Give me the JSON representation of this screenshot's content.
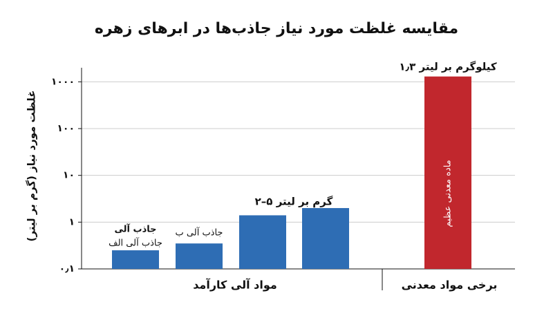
{
  "chart_data": {
    "type": "bar",
    "title": "مقایسه غلظت مورد نیاز جاذب‌ها در ابرهای زهره",
    "ylabel": "غلظت مورد نیاز (گرم بر لیتر)",
    "categories": [
      "جاذب آلی الف",
      "جاذب آلی ب",
      null,
      null,
      "ماده معدنی عظیم"
    ],
    "values": [
      0.25,
      0.35,
      1.4,
      2,
      1300
    ],
    "colors": [
      "#2e6db4",
      "#2e6db4",
      "#2e6db4",
      "#2e6db4",
      "#c1272d"
    ],
    "groups": [
      "مواد آلی کارآمد",
      "برخی مواد معدنی"
    ],
    "annotations": [
      "جاذب آلی",
      "۲–۵ گرم بر لیتر",
      "۱٫۳ کیلوگرم بر لیتر"
    ],
    "ylog": true,
    "ylim": [
      0.1,
      2000
    ],
    "yticks": [
      {
        "value": 0.1,
        "label": "۰٫۱"
      },
      {
        "value": 1,
        "label": "۱"
      },
      {
        "value": 10,
        "label": "۱۰"
      },
      {
        "value": 100,
        "label": "۱۰۰"
      },
      {
        "value": 1000,
        "label": "۱۰۰۰"
      }
    ],
    "grid": true
  }
}
